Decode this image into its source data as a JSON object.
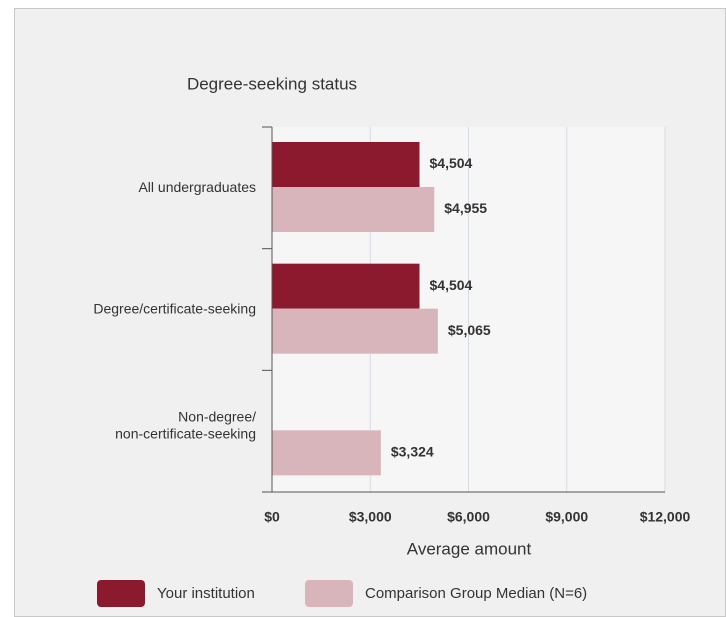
{
  "chart_data": {
    "type": "hbar",
    "title": "Degree-seeking status",
    "x_label": "Average amount",
    "categories": [
      "All undergraduates",
      "Degree/certificate-seeking",
      "Non-degree/\nnon-certificate-seeking"
    ],
    "series": [
      {
        "name": "Your institution",
        "color": "#8b1a2e",
        "values": [
          4504,
          4504,
          null
        ],
        "value_labels": [
          "$4,504",
          "$4,504",
          null
        ]
      },
      {
        "name": "Comparison Group Median (N=6)",
        "color": "#d8b4bb",
        "values": [
          4955,
          5065,
          3324
        ],
        "value_labels": [
          "$4,955",
          "$5,065",
          "$3,324"
        ]
      }
    ],
    "xlim": [
      0,
      12000
    ],
    "xticks": [
      {
        "value": 0,
        "label": "$0"
      },
      {
        "value": 3000,
        "label": "$3,000"
      },
      {
        "value": 6000,
        "label": "$6,000"
      },
      {
        "value": 9000,
        "label": "$9,000"
      },
      {
        "value": 12000,
        "label": "$12,000"
      }
    ],
    "grid": true,
    "legend": "bottom"
  }
}
